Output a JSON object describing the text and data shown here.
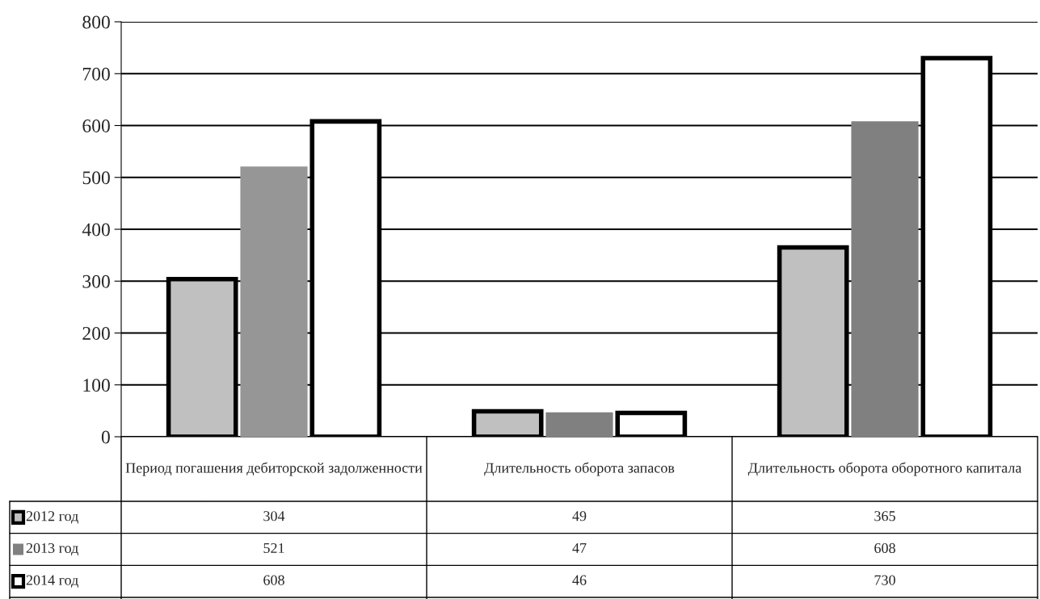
{
  "chart_data": {
    "type": "bar",
    "categories": [
      "Период погашения дебиторской задолженности",
      "Длительность оборота запасов",
      "Длительность оборота оборотного капитала"
    ],
    "series": [
      {
        "name": "2012 год",
        "color": "#c0c0c0",
        "values": [
          304,
          49,
          365
        ]
      },
      {
        "name": "2013 год",
        "color": "#808080",
        "colors": [
          "#969696",
          "#808080",
          "#808080"
        ],
        "values": [
          521,
          47,
          608
        ]
      },
      {
        "name": "2014 год",
        "color": "#ffffff",
        "values": [
          608,
          46,
          730
        ]
      }
    ],
    "ylim": [
      0,
      800
    ],
    "yticks": [
      0,
      100,
      200,
      300,
      400,
      500,
      600,
      700,
      800
    ],
    "grid": "y",
    "legend": "bottom left",
    "data_labels": true
  }
}
